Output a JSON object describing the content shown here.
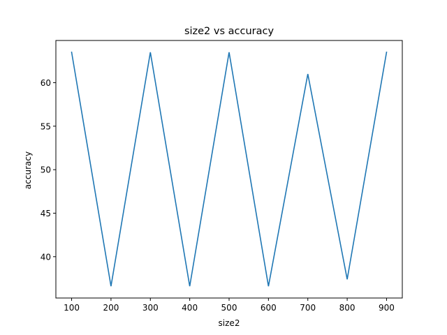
{
  "chart_data": {
    "type": "line",
    "title": "size2 vs accuracy",
    "xlabel": "size2",
    "ylabel": "accuracy",
    "x": [
      100,
      200,
      300,
      400,
      500,
      600,
      700,
      800,
      900
    ],
    "series": [
      {
        "values": [
          63.5,
          36.6,
          63.5,
          36.6,
          63.5,
          36.6,
          61.0,
          37.4,
          63.5
        ],
        "color": "#1f77b4"
      }
    ],
    "xticks": [
      100,
      200,
      300,
      400,
      500,
      600,
      700,
      800,
      900
    ],
    "yticks": [
      40,
      45,
      50,
      55,
      60
    ],
    "xlim": [
      60,
      940
    ],
    "ylim": [
      35.25,
      64.85
    ],
    "grid": false,
    "legend": "none"
  }
}
